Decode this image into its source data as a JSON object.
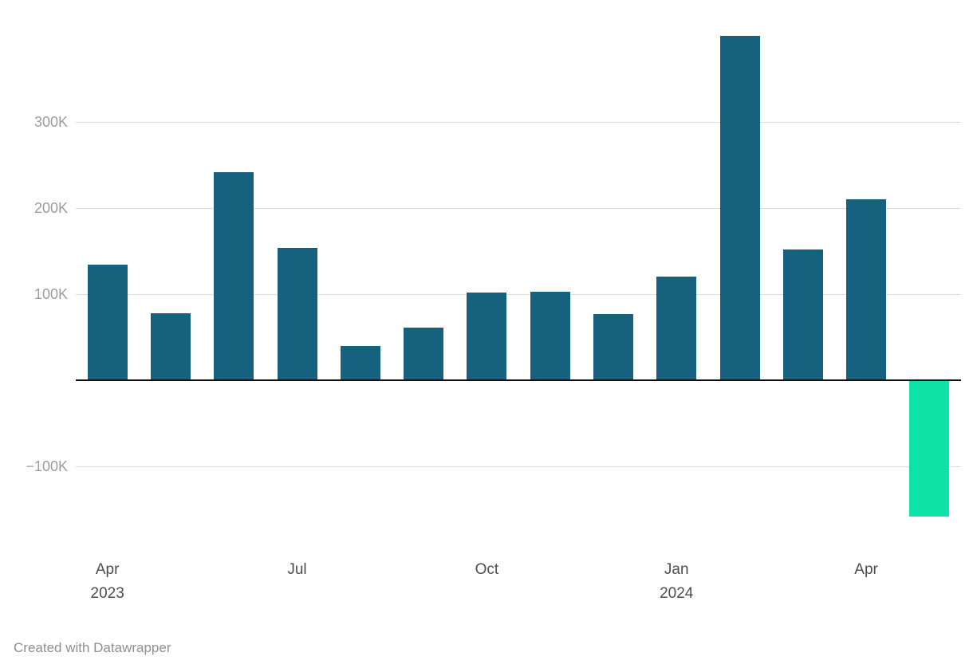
{
  "chart_data": {
    "type": "bar",
    "categories": [
      "Apr 2023",
      "May 2023",
      "Jun 2023",
      "Jul 2023",
      "Aug 2023",
      "Sep 2023",
      "Oct 2023",
      "Nov 2023",
      "Dec 2023",
      "Jan 2024",
      "Feb 2024",
      "Mar 2024",
      "Apr 2024",
      "May 2024"
    ],
    "values": [
      134000,
      78000,
      242000,
      154000,
      40000,
      61000,
      102000,
      103000,
      77000,
      120000,
      400000,
      152000,
      210000,
      -158000
    ],
    "title": "",
    "xlabel": "",
    "ylabel": "",
    "ylim": [
      -160000,
      440000
    ],
    "grid": "horizontal",
    "legend": "none",
    "y_ticks": [
      {
        "label": "300K",
        "value": 300000
      },
      {
        "label": "200K",
        "value": 200000
      },
      {
        "label": "100K",
        "value": 100000
      },
      {
        "label": "−100K",
        "value": -100000
      }
    ],
    "x_ticks": [
      {
        "index": 0,
        "label": "Apr",
        "sublabel": "2023"
      },
      {
        "index": 3,
        "label": "Jul",
        "sublabel": ""
      },
      {
        "index": 6,
        "label": "Oct",
        "sublabel": ""
      },
      {
        "index": 9,
        "label": "Jan",
        "sublabel": "2024"
      },
      {
        "index": 12,
        "label": "Apr",
        "sublabel": ""
      }
    ],
    "colors": {
      "positive": "#15617e",
      "negative": "#0de3a7",
      "grid": "#dcdcdc",
      "zero_line": "#111111",
      "y_tick_text": "#9c9c9c",
      "x_tick_text": "#4d4d4d"
    }
  },
  "footer": {
    "credit": "Created with Datawrapper"
  }
}
